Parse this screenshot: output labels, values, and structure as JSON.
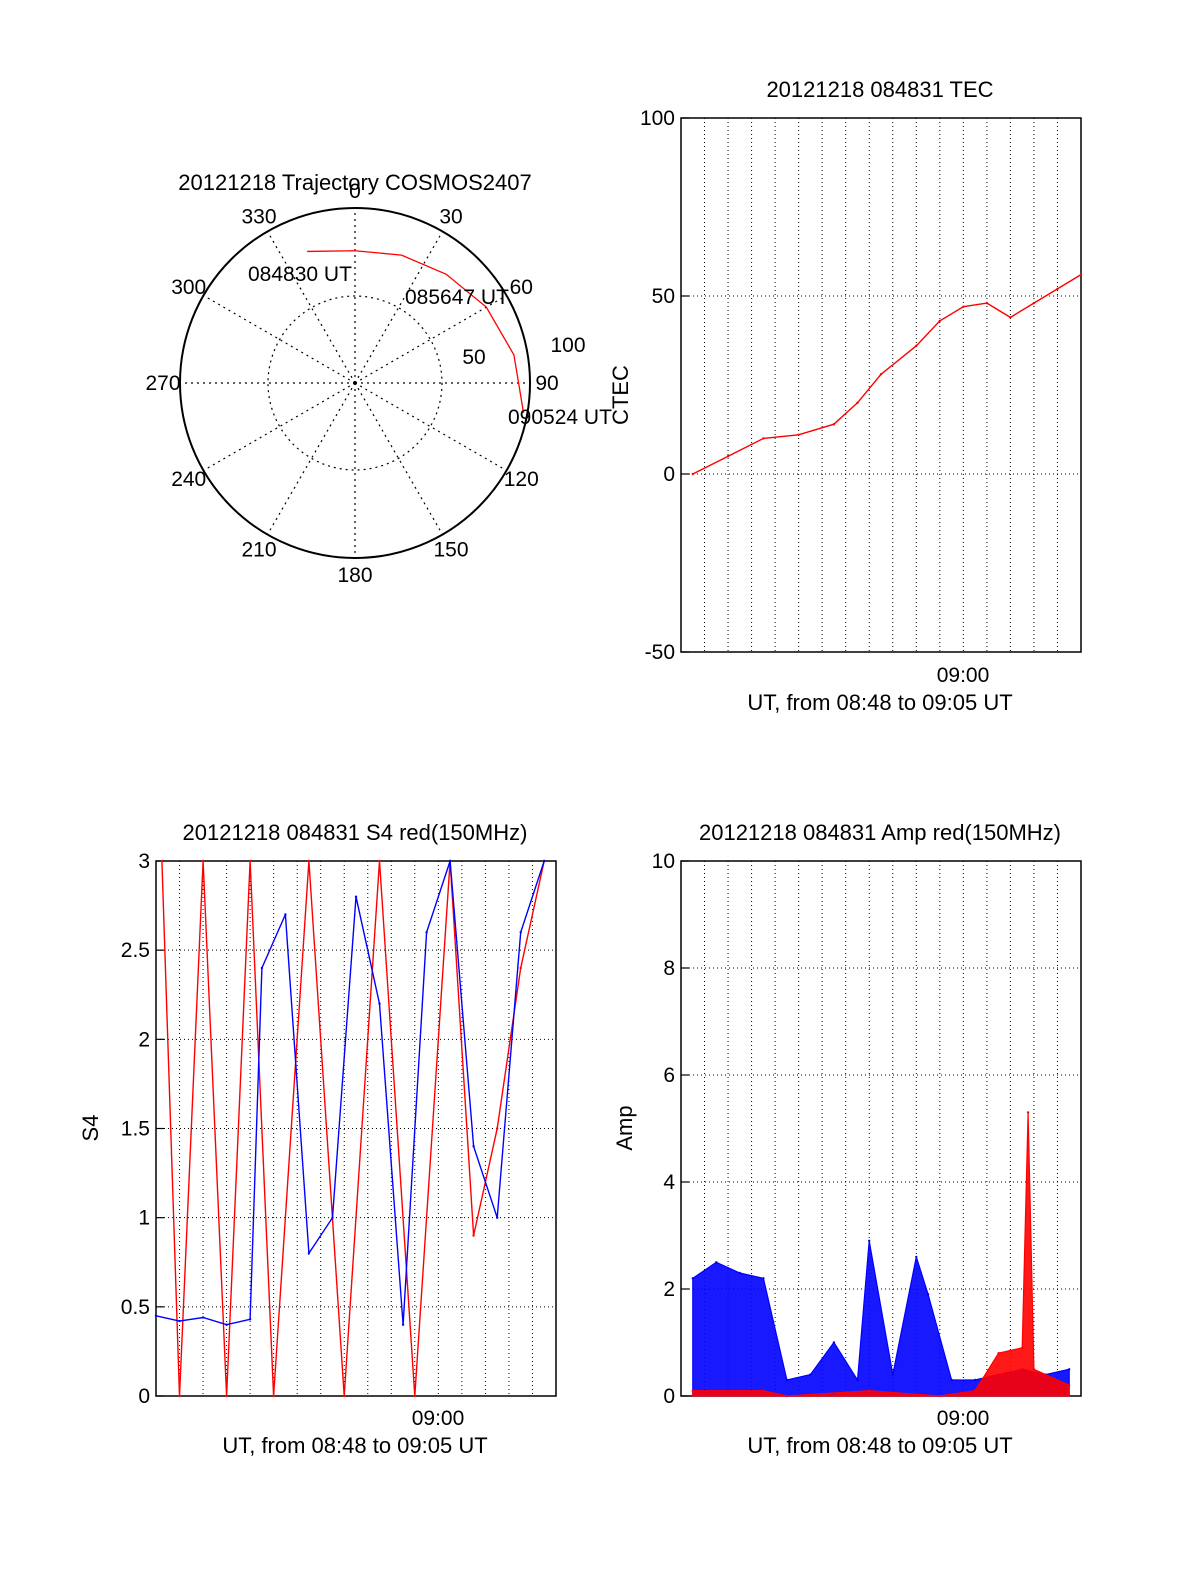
{
  "colors": {
    "red": "#ff0000",
    "blue": "#0000ff",
    "axis": "#000000"
  },
  "chart_data": [
    {
      "type": "polar",
      "title": "20121218 Trajectory COSMOS2407",
      "angle_labels": [
        "0",
        "30",
        "60",
        "90",
        "120",
        "150",
        "180",
        "210",
        "240",
        "270",
        "300",
        "330"
      ],
      "radius_labels": [
        "50",
        "100"
      ],
      "radius_max": 90,
      "trajectory": {
        "color": "red",
        "azimuth_deg": [
          -20,
          0,
          20,
          40,
          60,
          80,
          100
        ],
        "zenith_deg": [
          72,
          68,
          70,
          73,
          78,
          83,
          88
        ]
      },
      "annotations": [
        "084830 UT",
        "085647 UT",
        "090524 UT"
      ]
    },
    {
      "type": "line",
      "title": "20121218 084831 TEC",
      "xlabel": "UT, from 08:48 to 09:05 UT",
      "ylabel": "CTEC",
      "xlim": [
        "08:48",
        "09:05"
      ],
      "ylim": [
        -50,
        100
      ],
      "yticks": [
        "-50",
        "0",
        "50",
        "100"
      ],
      "xtick_labels": [
        "09:00"
      ],
      "grid": true,
      "series": [
        {
          "color": "red",
          "x": [
            "08:48:30",
            "08:50:00",
            "08:51:30",
            "08:53:00",
            "08:54:30",
            "08:55:30",
            "08:56:30",
            "08:58:00",
            "08:59:00",
            "09:00:00",
            "09:01:00",
            "09:02:00",
            "09:03:00",
            "09:04:00",
            "09:05:00"
          ],
          "y": [
            0,
            5,
            10,
            11,
            14,
            20,
            28,
            36,
            43,
            47,
            48,
            44,
            48,
            52,
            56
          ]
        }
      ]
    },
    {
      "type": "line",
      "title": "20121218 084831 S4 red(150MHz)",
      "xlabel": "UT, from 08:48 to 09:05 UT",
      "ylabel": "S4",
      "xlim": [
        "08:48",
        "09:05"
      ],
      "ylim": [
        0,
        3
      ],
      "yticks": [
        "0",
        "0.5",
        "1",
        "1.5",
        "2",
        "2.5",
        "3"
      ],
      "xtick_labels": [
        "09:00"
      ],
      "grid": true,
      "series": [
        {
          "color": "red",
          "x": [
            "08:48:15",
            "08:49:00",
            "08:50:00",
            "08:51:00",
            "08:52:00",
            "08:53:00",
            "08:54:30",
            "08:56:00",
            "08:57:30",
            "08:59:00",
            "09:00:30",
            "09:01:30",
            "09:02:30",
            "09:03:30",
            "09:04:30"
          ],
          "y": [
            3,
            0,
            3,
            0,
            3,
            0,
            3,
            0,
            3,
            0,
            3,
            0.9,
            1.5,
            2.4,
            3
          ]
        },
        {
          "color": "blue",
          "x": [
            "08:48:00",
            "08:49:00",
            "08:50:00",
            "08:51:00",
            "08:52:00",
            "08:52:30",
            "08:53:30",
            "08:54:30",
            "08:55:30",
            "08:56:30",
            "08:57:30",
            "08:58:30",
            "08:59:30",
            "09:00:30",
            "09:01:30",
            "09:02:30",
            "09:03:30",
            "09:04:30"
          ],
          "y": [
            0.45,
            0.42,
            0.44,
            0.4,
            0.43,
            2.4,
            2.7,
            0.8,
            1.0,
            2.8,
            2.2,
            0.4,
            2.6,
            3,
            1.4,
            1.0,
            2.6,
            3
          ]
        }
      ]
    },
    {
      "type": "line",
      "title": "20121218 084831 Amp red(150MHz)",
      "xlabel": "UT, from 08:48 to 09:05 UT",
      "ylabel": "Amp",
      "xlim": [
        "08:48",
        "09:05"
      ],
      "ylim": [
        0,
        10
      ],
      "yticks": [
        "0",
        "2",
        "4",
        "6",
        "8",
        "10"
      ],
      "xtick_labels": [
        "09:00"
      ],
      "grid": true,
      "series": [
        {
          "color": "blue",
          "x": [
            "08:48:30",
            "08:49:30",
            "08:50:30",
            "08:51:30",
            "08:52:30",
            "08:53:30",
            "08:54:30",
            "08:55:30",
            "08:56:00",
            "08:57:00",
            "08:58:00",
            "08:58:30",
            "08:59:30",
            "09:00:30",
            "09:01:30",
            "09:02:30",
            "09:03:30",
            "09:04:30"
          ],
          "y": [
            2.2,
            2.5,
            2.3,
            2.2,
            0.3,
            0.4,
            1.0,
            0.3,
            2.9,
            0.4,
            2.6,
            1.9,
            0.3,
            0.3,
            0.4,
            0.5,
            0.4,
            0.5
          ]
        },
        {
          "color": "red",
          "x": [
            "08:48:30",
            "08:51:30",
            "08:52:30",
            "08:56:00",
            "08:59:00",
            "09:00:30",
            "09:01:30",
            "09:02:30",
            "09:02:45",
            "09:03:00",
            "09:04:30"
          ],
          "y": [
            0.1,
            0.1,
            0.0,
            0.1,
            0.0,
            0.1,
            0.8,
            0.9,
            5.3,
            0.5,
            0.2
          ]
        }
      ]
    }
  ]
}
